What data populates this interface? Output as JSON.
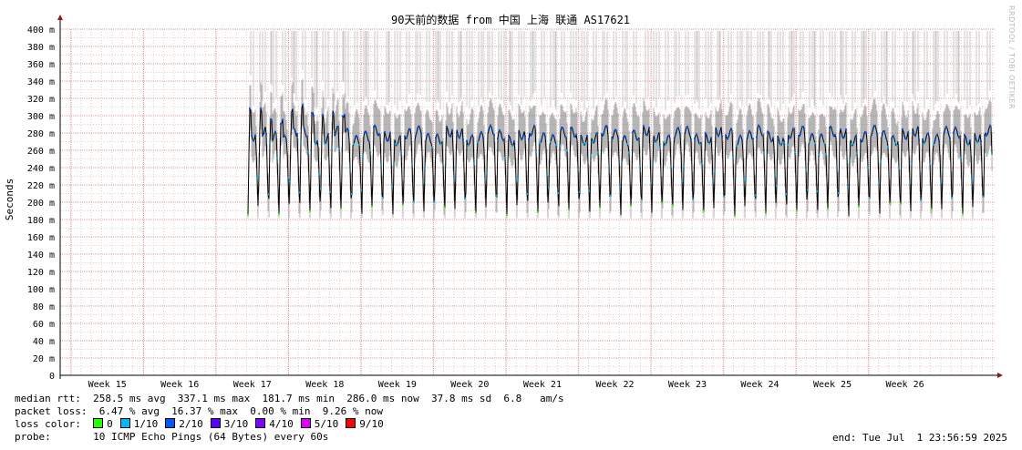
{
  "chart_data": {
    "type": "line",
    "title": "90天前的数据 from 中国 上海 联通 AS17621",
    "ylabel": "Seconds",
    "ylim": [
      0,
      0.4
    ],
    "y_ticks": [
      "0",
      "20 m",
      "40 m",
      "60 m",
      "80 m",
      "100 m",
      "120 m",
      "140 m",
      "160 m",
      "180 m",
      "200 m",
      "220 m",
      "240 m",
      "260 m",
      "280 m",
      "300 m",
      "320 m",
      "340 m",
      "360 m",
      "380 m",
      "400 m"
    ],
    "x_ticks": [
      "Week 15",
      "Week 16",
      "Week 17",
      "Week 18",
      "Week 19",
      "Week 20",
      "Week 21",
      "Week 22",
      "Week 23",
      "Week 24",
      "Week 25",
      "Week 26"
    ],
    "grid": true,
    "series": [
      {
        "name": "median rtt",
        "color": "#000000"
      },
      {
        "name": "packet loss",
        "color": "#c8c8c8"
      }
    ],
    "median_rtt_ms": {
      "avg": 258.5,
      "max": 337.1,
      "min": 181.7,
      "now": 286.0,
      "sd": 37.8,
      "am_s": 6.8
    },
    "packet_loss_pct": {
      "avg": 6.47,
      "max": 16.37,
      "min": 0.0,
      "now": 9.26
    }
  },
  "summary": {
    "median_rtt": "median rtt:  258.5 ms avg  337.1 ms max  181.7 ms min  286.0 ms now  37.8 ms sd  6.8   am/s",
    "packet_loss": "packet loss:  6.47 % avg  16.37 % max  0.00 % min  9.26 % now",
    "loss_color_label": "loss color:",
    "probe": "probe:       10 ICMP Echo Pings (64 Bytes) every 60s",
    "end": "end: Tue Jul  1 23:56:59 2025"
  },
  "loss_colors": [
    {
      "label": "0",
      "color": "#26ff00"
    },
    {
      "label": "1/10",
      "color": "#00b8ff"
    },
    {
      "label": "2/10",
      "color": "#0059ff"
    },
    {
      "label": "3/10",
      "color": "#5e00ff"
    },
    {
      "label": "4/10",
      "color": "#7e00ff"
    },
    {
      "label": "5/10",
      "color": "#dd00ff"
    },
    {
      "label": "9/10",
      "color": "#ff0000"
    }
  ],
  "watermark": "RRDTOOL / TOBI OETIKER"
}
